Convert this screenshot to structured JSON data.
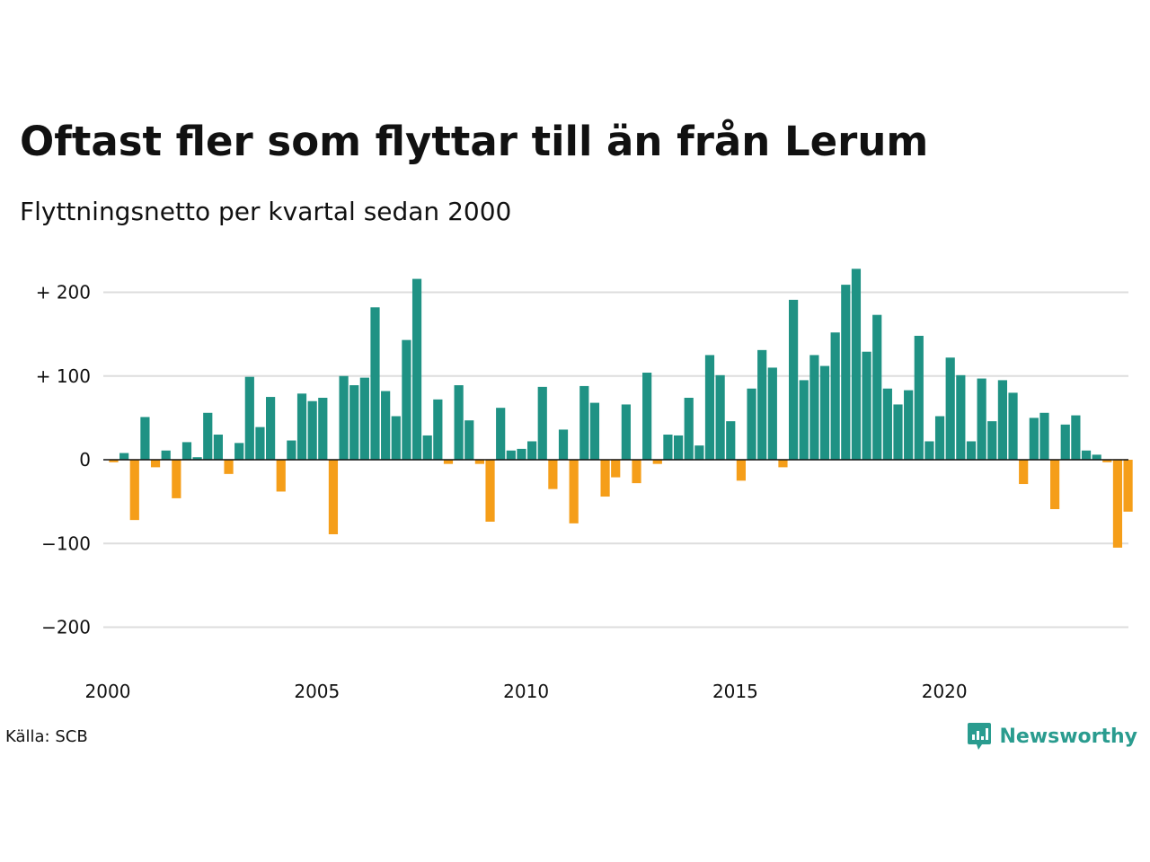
{
  "title": "Oftast fler som flyttar till än från Lerum",
  "subtitle": "Flyttningsnetto per kvartal sedan 2000",
  "source": "Källa: SCB",
  "brand": "Newsworthy",
  "brand_icon": "newsworthy-logo-icon",
  "colors": {
    "positive": "#1f9284",
    "negative": "#f59e19",
    "grid": "#dddddd",
    "zero_line": "#111111"
  },
  "chart_data": {
    "type": "bar",
    "title": "Oftast fler som flyttar till än från Lerum",
    "subtitle": "Flyttningsnetto per kvartal sedan 2000",
    "xlabel": "",
    "ylabel": "",
    "x_start": 2000,
    "quarters_per_year": 4,
    "xlim": [
      2000,
      2024.75
    ],
    "ylim": [
      -230,
      245
    ],
    "y_ticks": [
      {
        "value": 200,
        "label": "+ 200"
      },
      {
        "value": 100,
        "label": "+ 100"
      },
      {
        "value": 0,
        "label": "0"
      },
      {
        "value": -100,
        "label": "−100"
      },
      {
        "value": -200,
        "label": "−200"
      }
    ],
    "x_ticks": [
      {
        "value": 2000,
        "label": "2000"
      },
      {
        "value": 2005,
        "label": "2005"
      },
      {
        "value": 2010,
        "label": "2010"
      },
      {
        "value": 2015,
        "label": "2015"
      },
      {
        "value": 2020,
        "label": "2020"
      }
    ],
    "grid": true,
    "legend": false,
    "values": [
      -3,
      8,
      -72,
      51,
      -9,
      11,
      -46,
      21,
      3,
      56,
      30,
      -17,
      20,
      99,
      39,
      75,
      -38,
      23,
      79,
      70,
      74,
      -89,
      100,
      89,
      98,
      182,
      82,
      52,
      143,
      216,
      29,
      72,
      -5,
      89,
      47,
      -5,
      -74,
      62,
      11,
      13,
      22,
      87,
      -35,
      36,
      -76,
      88,
      68,
      -44,
      -21,
      66,
      -28,
      104,
      -5,
      30,
      29,
      74,
      17,
      125,
      101,
      46,
      -25,
      85,
      131,
      110,
      -9,
      191,
      95,
      125,
      112,
      152,
      209,
      228,
      129,
      173,
      85,
      66,
      83,
      148,
      22,
      52,
      122,
      101,
      22,
      97,
      46,
      95,
      80,
      -29,
      50,
      56,
      -59,
      42,
      53,
      11,
      6,
      -3,
      -105,
      -62
    ]
  }
}
